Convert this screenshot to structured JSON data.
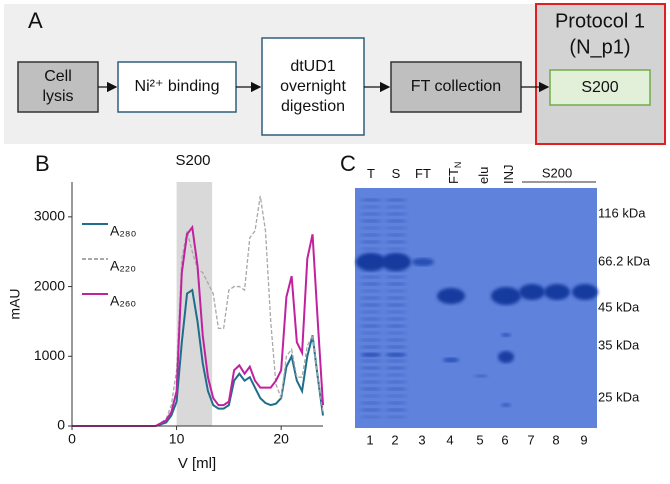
{
  "panel_a": {
    "letter": "A",
    "protocol_title": [
      "Protocol 1",
      "(N_p1)"
    ],
    "nodes": [
      {
        "lines": [
          "Cell",
          "lysis"
        ]
      },
      {
        "lines": [
          "Ni²⁺ binding"
        ]
      },
      {
        "lines": [
          "dtUD1",
          "overnight",
          "digestion"
        ]
      },
      {
        "lines": [
          "FT collection"
        ]
      },
      {
        "lines": [
          "S200"
        ]
      }
    ]
  },
  "chart_data": {
    "type": "line",
    "letter": "B",
    "title": "S200",
    "x_label": "V [ml]",
    "y_label": "mAU",
    "x": [
      0,
      8,
      9,
      9.5,
      10,
      10.5,
      11,
      11.5,
      12,
      12.5,
      13,
      13.5,
      14,
      14.5,
      15,
      15.5,
      16,
      16.5,
      17,
      17.5,
      18,
      18.5,
      19,
      19.5,
      20,
      20.5,
      21,
      21.5,
      22,
      22.5,
      23,
      23.5,
      24
    ],
    "series": [
      {
        "name": "A₂₈₀",
        "color": "#1f6e8c",
        "dashed": false,
        "values": [
          0,
          0,
          50,
          150,
          350,
          1200,
          1900,
          1950,
          1500,
          900,
          500,
          300,
          250,
          250,
          300,
          650,
          750,
          650,
          700,
          550,
          400,
          330,
          300,
          320,
          400,
          850,
          1000,
          650,
          500,
          1000,
          1300,
          700,
          150
        ]
      },
      {
        "name": "A₂₂₀",
        "color": "#a8a8a8",
        "dashed": true,
        "values": [
          0,
          0,
          100,
          300,
          800,
          2400,
          2800,
          2500,
          2250,
          2200,
          2050,
          1900,
          1400,
          1400,
          1950,
          2000,
          2000,
          1950,
          2700,
          2800,
          3300,
          2800,
          1500,
          600,
          400,
          1000,
          1100,
          700,
          700,
          1150,
          1300,
          700,
          200
        ]
      },
      {
        "name": "A₂₆₀",
        "color": "#c0229f",
        "dashed": false,
        "values": [
          0,
          0,
          80,
          200,
          500,
          2200,
          2750,
          2850,
          2300,
          1300,
          700,
          400,
          300,
          300,
          350,
          800,
          870,
          750,
          850,
          650,
          550,
          550,
          550,
          650,
          800,
          1850,
          2150,
          1200,
          1050,
          2400,
          2750,
          1500,
          300
        ]
      }
    ],
    "shaded_region": [
      10,
      13.4
    ],
    "xlim": [
      0,
      24
    ],
    "xticks": [
      0,
      10,
      20
    ],
    "ylim": [
      0,
      3500
    ],
    "yticks": [
      0,
      1000,
      2000,
      3000
    ],
    "legend": "upper left"
  },
  "panel_c": {
    "letter": "C",
    "lanes_top": [
      {
        "label": "T"
      },
      {
        "label": "S"
      },
      {
        "label": "FT"
      },
      {
        "label": "FT",
        "sub": "N"
      },
      {
        "label": "elu"
      },
      {
        "label": "INJ"
      }
    ],
    "group_label": "S200",
    "lane_numbers": [
      "1",
      "2",
      "3",
      "4",
      "5",
      "6",
      "7",
      "8",
      "9"
    ],
    "markers": [
      "116 kDa",
      "66.2 kDa",
      "45 kDa",
      "35 kDa",
      "25 kDa"
    ]
  }
}
